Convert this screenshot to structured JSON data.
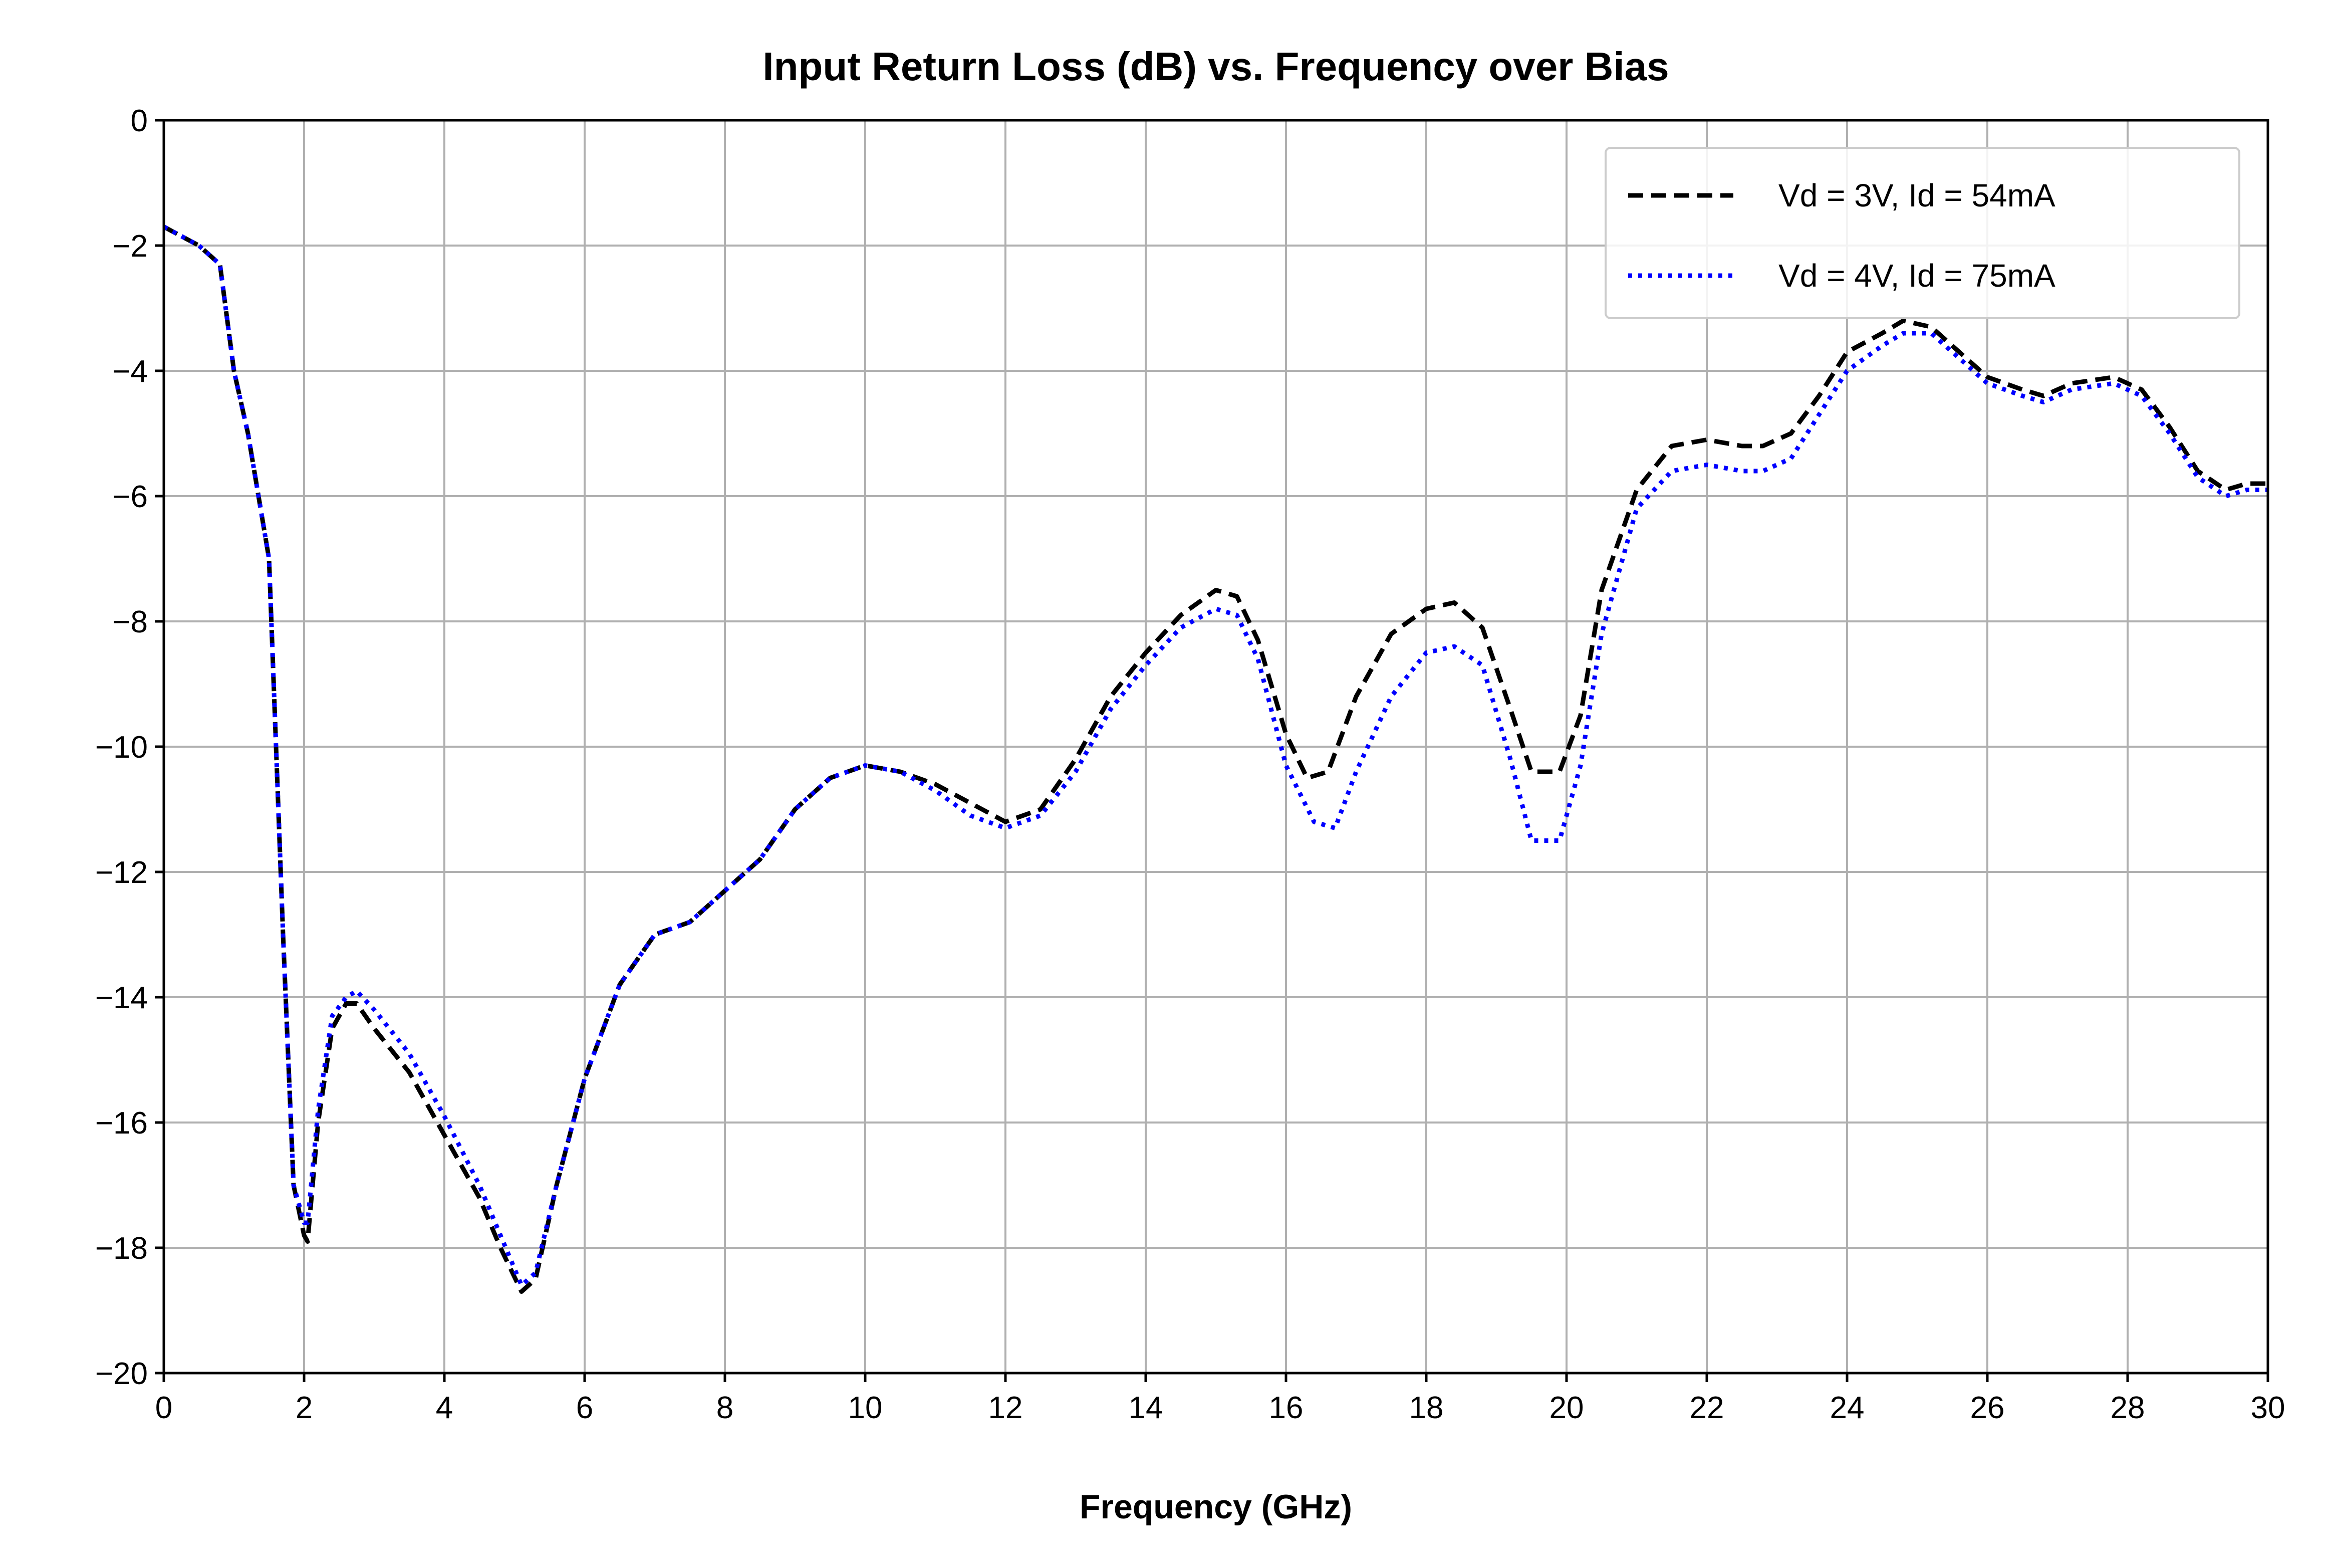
{
  "chart_data": {
    "type": "line",
    "title": "Input Return Loss (dB) vs. Frequency over Bias",
    "xlabel": "Frequency (GHz)",
    "ylabel": "",
    "xlim": [
      0,
      30
    ],
    "ylim": [
      -20,
      0
    ],
    "xticks": [
      "0",
      "2",
      "4",
      "6",
      "8",
      "10",
      "12",
      "14",
      "16",
      "18",
      "20",
      "22",
      "24",
      "26",
      "28",
      "30"
    ],
    "yticks": [
      "0",
      "−2",
      "−4",
      "−6",
      "−8",
      "−10",
      "−12",
      "−14",
      "−16",
      "−18",
      "−20"
    ],
    "grid": true,
    "legend_position": "top-right",
    "series": [
      {
        "name": "Vd = 3V, Id = 54mA",
        "color": "#000000",
        "style": "dashed",
        "x": [
          0,
          0.5,
          0.8,
          1.0,
          1.2,
          1.5,
          1.7,
          1.85,
          2.0,
          2.05,
          2.2,
          2.4,
          2.6,
          2.75,
          3.0,
          3.5,
          4.0,
          4.5,
          4.8,
          5.1,
          5.3,
          5.6,
          6.0,
          6.5,
          7.0,
          7.5,
          8.0,
          8.5,
          9.0,
          9.5,
          10.0,
          10.5,
          11.0,
          11.5,
          12.0,
          12.5,
          13.0,
          13.5,
          14.0,
          14.5,
          15.0,
          15.3,
          15.6,
          16.0,
          16.3,
          16.6,
          17.0,
          17.5,
          18.0,
          18.4,
          18.8,
          19.2,
          19.5,
          19.9,
          20.2,
          20.5,
          21.0,
          21.5,
          22.0,
          22.5,
          22.8,
          23.2,
          23.6,
          24.0,
          24.5,
          24.8,
          25.2,
          25.6,
          26.0,
          26.5,
          26.8,
          27.2,
          27.8,
          28.2,
          28.6,
          29.0,
          29.4,
          29.7,
          30.0
        ],
        "values": [
          -1.7,
          -2.0,
          -2.3,
          -4.0,
          -5.0,
          -7.0,
          -13.0,
          -17.0,
          -17.8,
          -17.9,
          -16.0,
          -14.5,
          -14.1,
          -14.1,
          -14.5,
          -15.2,
          -16.2,
          -17.2,
          -18.0,
          -18.7,
          -18.5,
          -17.0,
          -15.3,
          -13.8,
          -13.0,
          -12.8,
          -12.3,
          -11.8,
          -11.0,
          -10.5,
          -10.3,
          -10.4,
          -10.6,
          -10.9,
          -11.2,
          -11.0,
          -10.2,
          -9.2,
          -8.5,
          -7.9,
          -7.5,
          -7.6,
          -8.3,
          -9.8,
          -10.5,
          -10.4,
          -9.2,
          -8.2,
          -7.8,
          -7.7,
          -8.1,
          -9.4,
          -10.4,
          -10.4,
          -9.5,
          -7.5,
          -5.9,
          -5.2,
          -5.1,
          -5.2,
          -5.2,
          -5.0,
          -4.4,
          -3.7,
          -3.4,
          -3.2,
          -3.3,
          -3.7,
          -4.1,
          -4.3,
          -4.4,
          -4.2,
          -4.1,
          -4.3,
          -4.9,
          -5.6,
          -5.9,
          -5.8,
          -5.8
        ]
      },
      {
        "name": "Vd = 4V, Id = 75mA",
        "color": "#0000ff",
        "style": "dotted",
        "x": [
          0,
          0.5,
          0.8,
          1.0,
          1.2,
          1.5,
          1.7,
          1.85,
          2.0,
          2.05,
          2.2,
          2.4,
          2.6,
          2.75,
          3.0,
          3.5,
          4.0,
          4.5,
          4.8,
          5.1,
          5.3,
          5.6,
          6.0,
          6.5,
          7.0,
          7.5,
          8.0,
          8.5,
          9.0,
          9.5,
          10.0,
          10.5,
          11.0,
          11.5,
          12.0,
          12.5,
          13.0,
          13.5,
          14.0,
          14.5,
          15.0,
          15.3,
          15.6,
          16.0,
          16.4,
          16.7,
          17.0,
          17.5,
          18.0,
          18.4,
          18.8,
          19.2,
          19.5,
          19.9,
          20.2,
          20.5,
          21.0,
          21.5,
          22.0,
          22.5,
          22.8,
          23.2,
          23.6,
          24.0,
          24.5,
          24.8,
          25.2,
          25.6,
          26.0,
          26.5,
          26.8,
          27.2,
          27.8,
          28.2,
          28.6,
          29.0,
          29.4,
          29.7,
          30.0
        ],
        "values": [
          -1.7,
          -2.0,
          -2.3,
          -4.0,
          -5.0,
          -7.0,
          -13.0,
          -17.0,
          -17.6,
          -17.6,
          -15.8,
          -14.3,
          -14.0,
          -13.9,
          -14.2,
          -14.9,
          -15.9,
          -17.0,
          -17.8,
          -18.6,
          -18.4,
          -17.0,
          -15.3,
          -13.8,
          -13.0,
          -12.8,
          -12.3,
          -11.8,
          -11.0,
          -10.5,
          -10.3,
          -10.4,
          -10.7,
          -11.1,
          -11.3,
          -11.1,
          -10.4,
          -9.4,
          -8.7,
          -8.1,
          -7.8,
          -7.9,
          -8.6,
          -10.3,
          -11.2,
          -11.3,
          -10.4,
          -9.2,
          -8.5,
          -8.4,
          -8.7,
          -10.2,
          -11.5,
          -11.5,
          -10.3,
          -8.2,
          -6.2,
          -5.6,
          -5.5,
          -5.6,
          -5.6,
          -5.4,
          -4.7,
          -4.0,
          -3.6,
          -3.4,
          -3.4,
          -3.8,
          -4.2,
          -4.4,
          -4.5,
          -4.3,
          -4.2,
          -4.4,
          -5.0,
          -5.7,
          -6.0,
          -5.9,
          -5.9
        ]
      }
    ]
  }
}
